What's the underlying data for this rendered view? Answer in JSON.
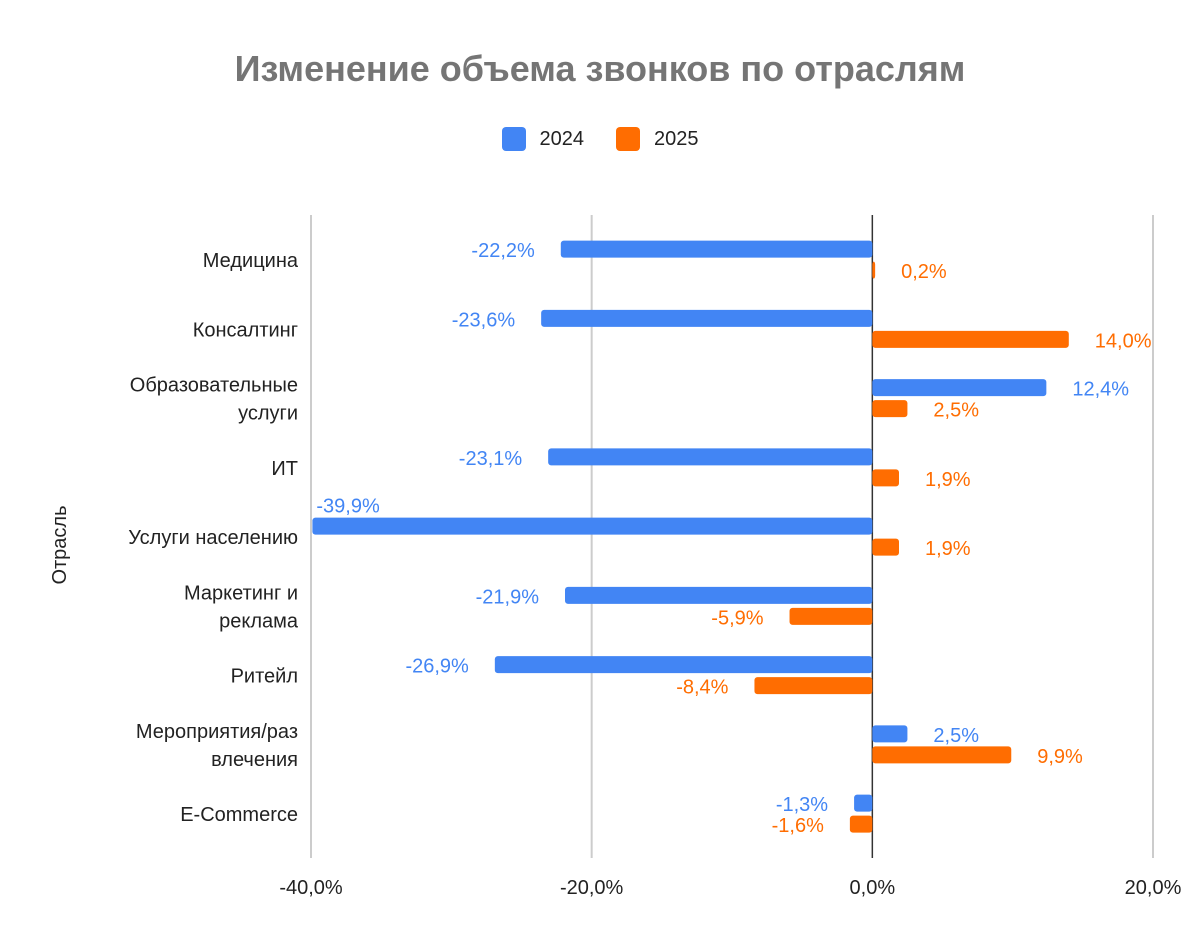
{
  "chart_data": {
    "type": "bar",
    "orientation": "horizontal",
    "title": "Изменение объема звонков по отраслям",
    "ylabel": "Отрасль",
    "xlabel": "",
    "xlim": [
      -40,
      20
    ],
    "xticks": [
      "-40,0%",
      "-20,0%",
      "0,0%",
      "20,0%"
    ],
    "xtick_values": [
      -40,
      -20,
      0,
      20
    ],
    "grid": true,
    "legend_position": "top",
    "categories": [
      [
        "Медицина"
      ],
      [
        "Консалтинг"
      ],
      [
        "Образовательные",
        "услуги"
      ],
      [
        "ИТ"
      ],
      [
        "Услуги населению"
      ],
      [
        "Маркетинг и",
        "реклама"
      ],
      [
        "Ритейл"
      ],
      [
        "Мероприятия/раз",
        "влечения"
      ],
      [
        "E-Commerce"
      ]
    ],
    "series": [
      {
        "name": "2024",
        "color": "#4285F4",
        "values": [
          -22.2,
          -23.6,
          12.4,
          -23.1,
          -39.9,
          -21.9,
          -26.9,
          2.5,
          -1.3
        ],
        "labels": [
          "-22,2%",
          "-23,6%",
          "12,4%",
          "-23,1%",
          "-39,9%",
          "-21,9%",
          "-26,9%",
          "2,5%",
          "-1,3%"
        ]
      },
      {
        "name": "2025",
        "color": "#FF6D01",
        "values": [
          0.2,
          14.0,
          2.5,
          1.9,
          1.9,
          -5.9,
          -8.4,
          9.9,
          -1.6
        ],
        "labels": [
          "0,2%",
          "14,0%",
          "2,5%",
          "1,9%",
          "1,9%",
          "-5,9%",
          "-8,4%",
          "9,9%",
          "-1,6%"
        ]
      }
    ]
  }
}
